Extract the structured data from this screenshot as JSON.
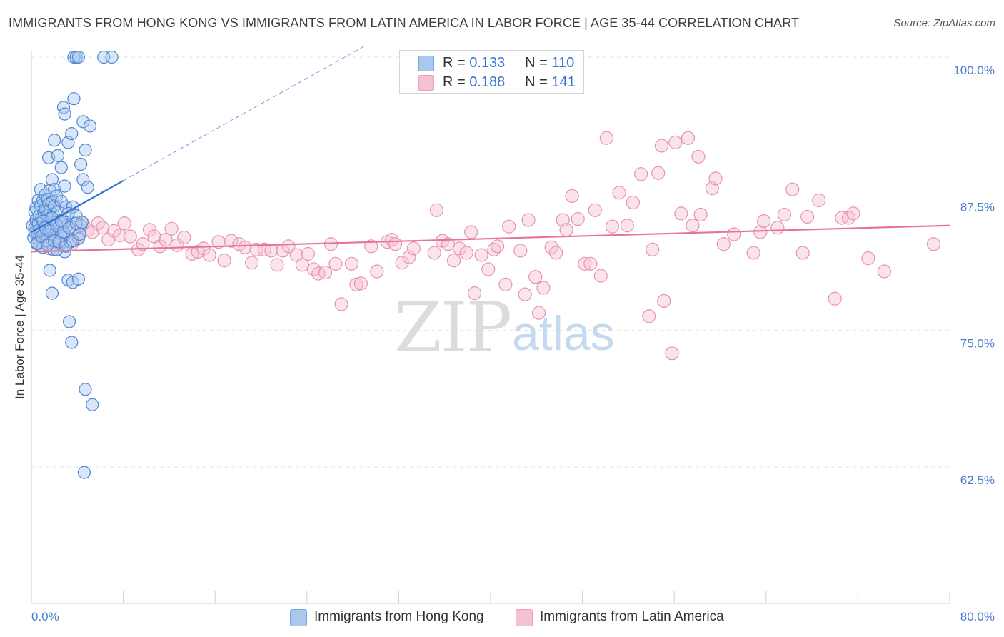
{
  "title": "IMMIGRANTS FROM HONG KONG VS IMMIGRANTS FROM LATIN AMERICA IN LABOR FORCE | AGE 35-44 CORRELATION CHART",
  "source": "Source: ZipAtlas.com",
  "watermark": {
    "zip": "ZIP",
    "atlas": "atlas"
  },
  "legend": {
    "r_label": "R =",
    "n_label": "N =",
    "items": [
      {
        "r": "0.133",
        "n": "110"
      },
      {
        "r": "0.188",
        "n": "141"
      }
    ]
  },
  "bottom_legend": [
    "Immigrants from Hong Kong",
    "Immigrants from Latin America"
  ],
  "colors": {
    "hk_fill": "#a9c8ee",
    "hk_stroke": "#4f86d4",
    "hk_line": "#2f6fd0",
    "la_fill": "#f6c1d2",
    "la_stroke": "#e693af",
    "la_line": "#e5739a",
    "axis_text": "#4a7fd0",
    "grid": "#e3e3e3"
  },
  "chart_data": {
    "type": "scatter",
    "title": "IMMIGRANTS FROM HONG KONG VS IMMIGRANTS FROM LATIN AMERICA IN LABOR FORCE | AGE 35-44 CORRELATION CHART",
    "xlabel": "",
    "ylabel": "In Labor Force | Age 35-44",
    "xlim": [
      0,
      80
    ],
    "ylim": [
      50,
      101
    ],
    "x_tick_labels": [
      "0.0%",
      "80.0%"
    ],
    "y_tick_values": [
      62.5,
      75.0,
      87.5,
      100.0
    ],
    "y_tick_labels": [
      "62.5%",
      "75.0%",
      "87.5%",
      "100.0%"
    ],
    "grid": "horizontal dashed",
    "legend_position": "top-center",
    "series": [
      {
        "name": "Immigrants from Hong Kong",
        "r": 0.133,
        "n": 110,
        "trend": {
          "x": [
            0,
            8
          ],
          "y": [
            84.0,
            88.7
          ],
          "extended_x": [
            8,
            29
          ],
          "extended_y": [
            88.7,
            101.0
          ]
        },
        "points": [
          [
            0.1,
            84.6
          ],
          [
            0.2,
            83.5
          ],
          [
            0.3,
            85.8
          ],
          [
            0.3,
            84.4
          ],
          [
            0.4,
            86.2
          ],
          [
            0.4,
            85.1
          ],
          [
            0.5,
            84.0
          ],
          [
            0.5,
            82.9
          ],
          [
            0.6,
            86.9
          ],
          [
            0.6,
            84.8
          ],
          [
            0.7,
            85.5
          ],
          [
            0.7,
            83.7
          ],
          [
            0.8,
            87.9
          ],
          [
            0.8,
            86.4
          ],
          [
            0.9,
            85.3
          ],
          [
            0.9,
            84.1
          ],
          [
            1.0,
            82.6
          ],
          [
            1.0,
            86.9
          ],
          [
            1.1,
            85.8
          ],
          [
            1.1,
            83.9
          ],
          [
            1.2,
            87.4
          ],
          [
            1.2,
            86.1
          ],
          [
            1.3,
            84.7
          ],
          [
            1.3,
            83.2
          ],
          [
            1.4,
            87.0
          ],
          [
            1.4,
            85.5
          ],
          [
            1.5,
            86.6
          ],
          [
            1.5,
            84.3
          ],
          [
            1.6,
            87.8
          ],
          [
            1.6,
            86.0
          ],
          [
            1.7,
            85.2
          ],
          [
            1.7,
            83.8
          ],
          [
            1.8,
            88.8
          ],
          [
            1.8,
            86.7
          ],
          [
            1.9,
            85.6
          ],
          [
            1.9,
            82.4
          ],
          [
            2.0,
            87.9
          ],
          [
            2.0,
            86.4
          ],
          [
            2.1,
            84.9
          ],
          [
            2.1,
            83.5
          ],
          [
            2.2,
            87.3
          ],
          [
            2.3,
            85.9
          ],
          [
            2.4,
            84.5
          ],
          [
            2.5,
            82.9
          ],
          [
            2.6,
            86.8
          ],
          [
            2.7,
            85.1
          ],
          [
            2.8,
            83.7
          ],
          [
            2.9,
            82.2
          ],
          [
            3.0,
            86.3
          ],
          [
            3.1,
            84.6
          ],
          [
            1.5,
            90.8
          ],
          [
            2.0,
            92.4
          ],
          [
            2.3,
            91.0
          ],
          [
            2.6,
            89.9
          ],
          [
            2.9,
            88.2
          ],
          [
            3.2,
            92.2
          ],
          [
            3.5,
            93.0
          ],
          [
            2.8,
            95.4
          ],
          [
            2.9,
            94.8
          ],
          [
            3.7,
            96.2
          ],
          [
            4.5,
            94.1
          ],
          [
            5.1,
            93.7
          ],
          [
            4.7,
            91.5
          ],
          [
            4.5,
            88.8
          ],
          [
            4.9,
            88.1
          ],
          [
            4.3,
            90.2
          ],
          [
            3.6,
            86.3
          ],
          [
            3.9,
            85.5
          ],
          [
            4.3,
            84.6
          ],
          [
            4.1,
            83.4
          ],
          [
            3.2,
            85.7
          ],
          [
            2.9,
            84.9
          ],
          [
            2.6,
            83.9
          ],
          [
            3.4,
            83.1
          ],
          [
            2.2,
            82.4
          ],
          [
            1.6,
            80.5
          ],
          [
            1.8,
            78.4
          ],
          [
            3.2,
            79.6
          ],
          [
            3.6,
            79.4
          ],
          [
            4.1,
            79.7
          ],
          [
            3.3,
            75.8
          ],
          [
            3.5,
            73.9
          ],
          [
            4.7,
            69.6
          ],
          [
            5.3,
            68.2
          ],
          [
            4.6,
            62.0
          ],
          [
            3.7,
            100.0
          ],
          [
            3.9,
            100.0
          ],
          [
            4.1,
            100.0
          ],
          [
            6.3,
            100.0
          ],
          [
            7.0,
            100.0
          ],
          [
            0.3,
            84.0
          ],
          [
            0.5,
            83.0
          ],
          [
            0.7,
            84.2
          ],
          [
            0.9,
            83.6
          ],
          [
            1.0,
            85.0
          ],
          [
            1.2,
            84.4
          ],
          [
            1.4,
            82.8
          ],
          [
            1.6,
            84.1
          ],
          [
            1.8,
            85.3
          ],
          [
            2.0,
            83.2
          ],
          [
            2.2,
            84.6
          ],
          [
            2.4,
            83.1
          ],
          [
            2.6,
            85.0
          ],
          [
            2.8,
            84.0
          ],
          [
            3.0,
            82.7
          ],
          [
            3.3,
            84.4
          ],
          [
            3.6,
            83.2
          ],
          [
            3.9,
            84.8
          ],
          [
            4.2,
            83.8
          ],
          [
            4.4,
            84.9
          ]
        ]
      },
      {
        "name": "Immigrants from Latin America",
        "r": 0.188,
        "n": 141,
        "trend": {
          "x": [
            0,
            80
          ],
          "y": [
            82.2,
            84.6
          ]
        },
        "points": [
          [
            0.5,
            83.6
          ],
          [
            0.7,
            83.0
          ],
          [
            1.0,
            83.9
          ],
          [
            1.3,
            84.3
          ],
          [
            1.6,
            82.5
          ],
          [
            1.8,
            83.4
          ],
          [
            2.0,
            84.5
          ],
          [
            2.3,
            83.2
          ],
          [
            2.6,
            84.9
          ],
          [
            2.9,
            83.7
          ],
          [
            3.2,
            84.1
          ],
          [
            3.5,
            82.9
          ],
          [
            3.8,
            84.4
          ],
          [
            4.1,
            83.6
          ],
          [
            4.5,
            84.8
          ],
          [
            4.9,
            84.2
          ],
          [
            5.3,
            84.0
          ],
          [
            5.8,
            84.8
          ],
          [
            6.2,
            84.4
          ],
          [
            6.7,
            83.3
          ],
          [
            7.2,
            84.1
          ],
          [
            7.7,
            83.7
          ],
          [
            8.1,
            84.8
          ],
          [
            8.6,
            83.6
          ],
          [
            9.3,
            82.4
          ],
          [
            9.7,
            82.9
          ],
          [
            10.3,
            84.2
          ],
          [
            10.7,
            83.6
          ],
          [
            11.2,
            82.7
          ],
          [
            11.7,
            83.3
          ],
          [
            12.2,
            84.3
          ],
          [
            12.7,
            82.8
          ],
          [
            13.3,
            83.5
          ],
          [
            14.0,
            82.0
          ],
          [
            14.5,
            82.2
          ],
          [
            15.0,
            82.5
          ],
          [
            15.5,
            81.9
          ],
          [
            16.3,
            83.1
          ],
          [
            16.8,
            81.4
          ],
          [
            17.4,
            83.2
          ],
          [
            18.1,
            82.9
          ],
          [
            18.6,
            82.6
          ],
          [
            19.2,
            81.2
          ],
          [
            19.6,
            82.4
          ],
          [
            20.3,
            82.4
          ],
          [
            20.9,
            82.3
          ],
          [
            21.4,
            81.0
          ],
          [
            21.9,
            82.3
          ],
          [
            22.4,
            82.7
          ],
          [
            23.1,
            81.9
          ],
          [
            23.6,
            81.0
          ],
          [
            24.1,
            82.0
          ],
          [
            24.6,
            80.6
          ],
          [
            25.0,
            80.2
          ],
          [
            25.6,
            80.3
          ],
          [
            26.1,
            82.9
          ],
          [
            26.5,
            81.1
          ],
          [
            27.0,
            77.4
          ],
          [
            27.9,
            81.1
          ],
          [
            28.3,
            79.2
          ],
          [
            28.7,
            79.3
          ],
          [
            29.6,
            82.7
          ],
          [
            30.1,
            80.4
          ],
          [
            31.0,
            83.1
          ],
          [
            31.4,
            83.3
          ],
          [
            31.7,
            82.9
          ],
          [
            32.3,
            81.2
          ],
          [
            32.9,
            81.7
          ],
          [
            33.3,
            82.5
          ],
          [
            35.1,
            82.1
          ],
          [
            35.3,
            86.0
          ],
          [
            35.8,
            83.2
          ],
          [
            36.3,
            82.9
          ],
          [
            36.8,
            81.4
          ],
          [
            37.3,
            82.5
          ],
          [
            37.9,
            82.1
          ],
          [
            38.3,
            84.0
          ],
          [
            38.6,
            78.4
          ],
          [
            39.2,
            81.9
          ],
          [
            39.8,
            80.6
          ],
          [
            40.3,
            82.4
          ],
          [
            40.6,
            82.7
          ],
          [
            41.3,
            79.2
          ],
          [
            41.6,
            84.5
          ],
          [
            42.6,
            82.3
          ],
          [
            43.0,
            78.3
          ],
          [
            43.3,
            85.1
          ],
          [
            43.9,
            79.9
          ],
          [
            44.2,
            76.6
          ],
          [
            44.6,
            78.9
          ],
          [
            45.3,
            82.6
          ],
          [
            45.7,
            82.1
          ],
          [
            46.3,
            85.1
          ],
          [
            46.6,
            84.2
          ],
          [
            47.1,
            87.3
          ],
          [
            47.6,
            85.2
          ],
          [
            48.2,
            81.1
          ],
          [
            48.7,
            81.1
          ],
          [
            49.1,
            86.0
          ],
          [
            49.6,
            80.0
          ],
          [
            50.1,
            92.6
          ],
          [
            50.6,
            84.5
          ],
          [
            51.2,
            87.6
          ],
          [
            51.9,
            84.6
          ],
          [
            52.4,
            86.7
          ],
          [
            53.1,
            89.3
          ],
          [
            53.8,
            76.3
          ],
          [
            54.1,
            82.4
          ],
          [
            54.6,
            89.4
          ],
          [
            54.9,
            91.9
          ],
          [
            55.1,
            77.7
          ],
          [
            55.8,
            72.9
          ],
          [
            56.1,
            92.2
          ],
          [
            56.6,
            85.7
          ],
          [
            57.2,
            92.6
          ],
          [
            57.6,
            84.6
          ],
          [
            58.1,
            90.9
          ],
          [
            58.3,
            85.6
          ],
          [
            59.3,
            88.0
          ],
          [
            59.6,
            88.9
          ],
          [
            60.3,
            82.9
          ],
          [
            61.2,
            83.8
          ],
          [
            62.9,
            82.1
          ],
          [
            63.5,
            84.0
          ],
          [
            63.8,
            85.0
          ],
          [
            65.0,
            84.4
          ],
          [
            65.6,
            85.6
          ],
          [
            66.3,
            87.9
          ],
          [
            67.2,
            82.1
          ],
          [
            67.6,
            85.4
          ],
          [
            68.6,
            86.9
          ],
          [
            70.0,
            77.9
          ],
          [
            70.6,
            85.3
          ],
          [
            71.2,
            85.3
          ],
          [
            71.6,
            85.7
          ],
          [
            72.9,
            81.6
          ],
          [
            74.3,
            80.4
          ],
          [
            78.6,
            82.9
          ],
          [
            0.8,
            82.8
          ],
          [
            1.4,
            83.1
          ],
          [
            2.2,
            84.0
          ]
        ]
      }
    ]
  }
}
